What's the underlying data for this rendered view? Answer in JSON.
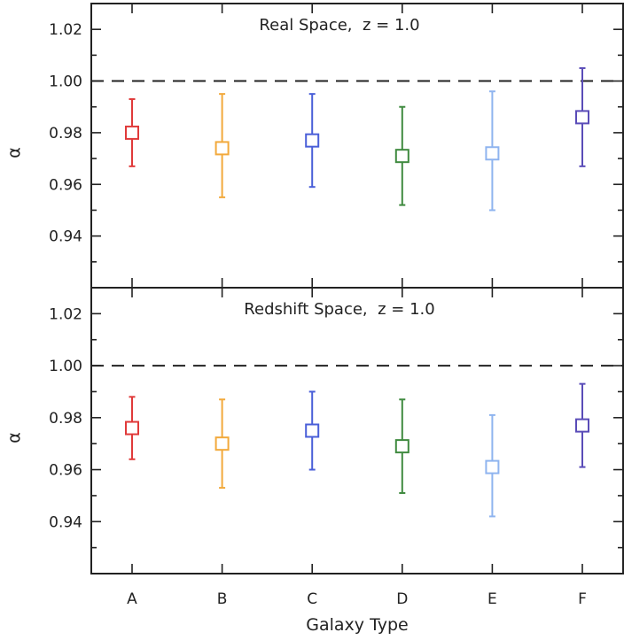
{
  "chart_data": [
    {
      "type": "scatter",
      "title": "Real Space,  z = 1.0",
      "xlabel": "",
      "ylabel": "α",
      "ylim": [
        0.92,
        1.03
      ],
      "yticks": [
        0.94,
        0.96,
        0.98,
        1.0,
        1.02
      ],
      "ytick_labels": [
        "0.94",
        "0.96",
        "0.98",
        "1.00",
        "1.02"
      ],
      "reference_line": 1.0,
      "categories": [
        "A",
        "B",
        "C",
        "D",
        "E",
        "F"
      ],
      "colors": [
        "#e03a3a",
        "#f2a93b",
        "#4a5fd8",
        "#3f8a3f",
        "#8fb4ef",
        "#5a4cb8"
      ],
      "values": [
        0.98,
        0.974,
        0.977,
        0.971,
        0.972,
        0.986
      ],
      "err_low": [
        0.967,
        0.955,
        0.959,
        0.952,
        0.95,
        0.967
      ],
      "err_high": [
        0.993,
        0.995,
        0.995,
        0.99,
        0.996,
        1.005
      ]
    },
    {
      "type": "scatter",
      "title": "Redshift Space,  z = 1.0",
      "xlabel": "Galaxy Type",
      "ylabel": "α",
      "ylim": [
        0.92,
        1.03
      ],
      "yticks": [
        0.94,
        0.96,
        0.98,
        1.0,
        1.02
      ],
      "ytick_labels": [
        "0.94",
        "0.96",
        "0.98",
        "1.00",
        "1.02"
      ],
      "reference_line": 1.0,
      "categories": [
        "A",
        "B",
        "C",
        "D",
        "E",
        "F"
      ],
      "colors": [
        "#e03a3a",
        "#f2a93b",
        "#4a5fd8",
        "#3f8a3f",
        "#8fb4ef",
        "#5a4cb8"
      ],
      "values": [
        0.976,
        0.97,
        0.975,
        0.969,
        0.961,
        0.977
      ],
      "err_low": [
        0.964,
        0.953,
        0.96,
        0.951,
        0.942,
        0.961
      ],
      "err_high": [
        0.988,
        0.987,
        0.99,
        0.987,
        0.981,
        0.993
      ]
    }
  ]
}
